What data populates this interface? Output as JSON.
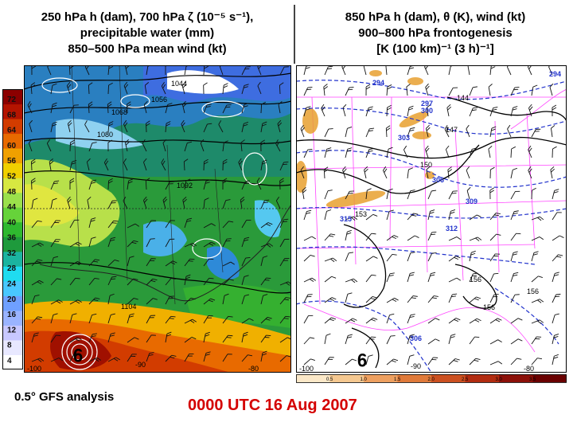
{
  "left_panel": {
    "title_lines": [
      "250 hPa h (dam), 700 hPa ζ (10⁻⁵ s⁻¹),",
      "precipitable water (mm)",
      "850–500 hPa mean wind (kt)"
    ],
    "colorbar_ticks": [
      "72",
      "68",
      "64",
      "60",
      "56",
      "52",
      "48",
      "44",
      "40",
      "36",
      "32",
      "28",
      "24",
      "20",
      "16",
      "12",
      "8",
      "4"
    ],
    "height_labels": [
      "1044",
      "1056",
      "1068",
      "1080",
      "1092",
      "1104"
    ],
    "lon_labels": [
      "-100",
      "-90",
      "-80"
    ]
  },
  "right_panel": {
    "title_lines": [
      "850 hPa h (dam), θ (K), wind (kt)",
      "900–800 hPa frontogenesis",
      "[K (100 km)⁻¹ (3 h)⁻¹]"
    ],
    "theta_labels": [
      "294",
      "297",
      "300",
      "303",
      "306",
      "309",
      "312",
      "315",
      "294",
      "306"
    ],
    "height_labels": [
      "144",
      "147",
      "150",
      "153",
      "156",
      "156",
      "156"
    ],
    "lon_labels": [
      "-100",
      "-90",
      "-80"
    ],
    "colorbar_ticks": [
      "0.5",
      "1.0",
      "1.5",
      "2.0",
      "2.5",
      "3.0",
      "3.5"
    ]
  },
  "footer": {
    "source": "0.5° GFS analysis",
    "datetime": "0000 UTC 16 Aug 2007"
  },
  "colors": {
    "pw_scale": [
      "#ffffff",
      "#e8e8ff",
      "#c8c8ff",
      "#9ab4ff",
      "#6fa0ff",
      "#49c8ff",
      "#1fdcf0",
      "#1bb4a0",
      "#1e9a3c",
      "#2fb82f",
      "#66d33a",
      "#9be04b",
      "#d7e841",
      "#f0d000",
      "#f0a000",
      "#e86a00",
      "#d23c00",
      "#b41400",
      "#8c0000"
    ],
    "front_fill": "#e8a030",
    "theta_line": "#2233cc",
    "state_line": "#ff44ff"
  }
}
